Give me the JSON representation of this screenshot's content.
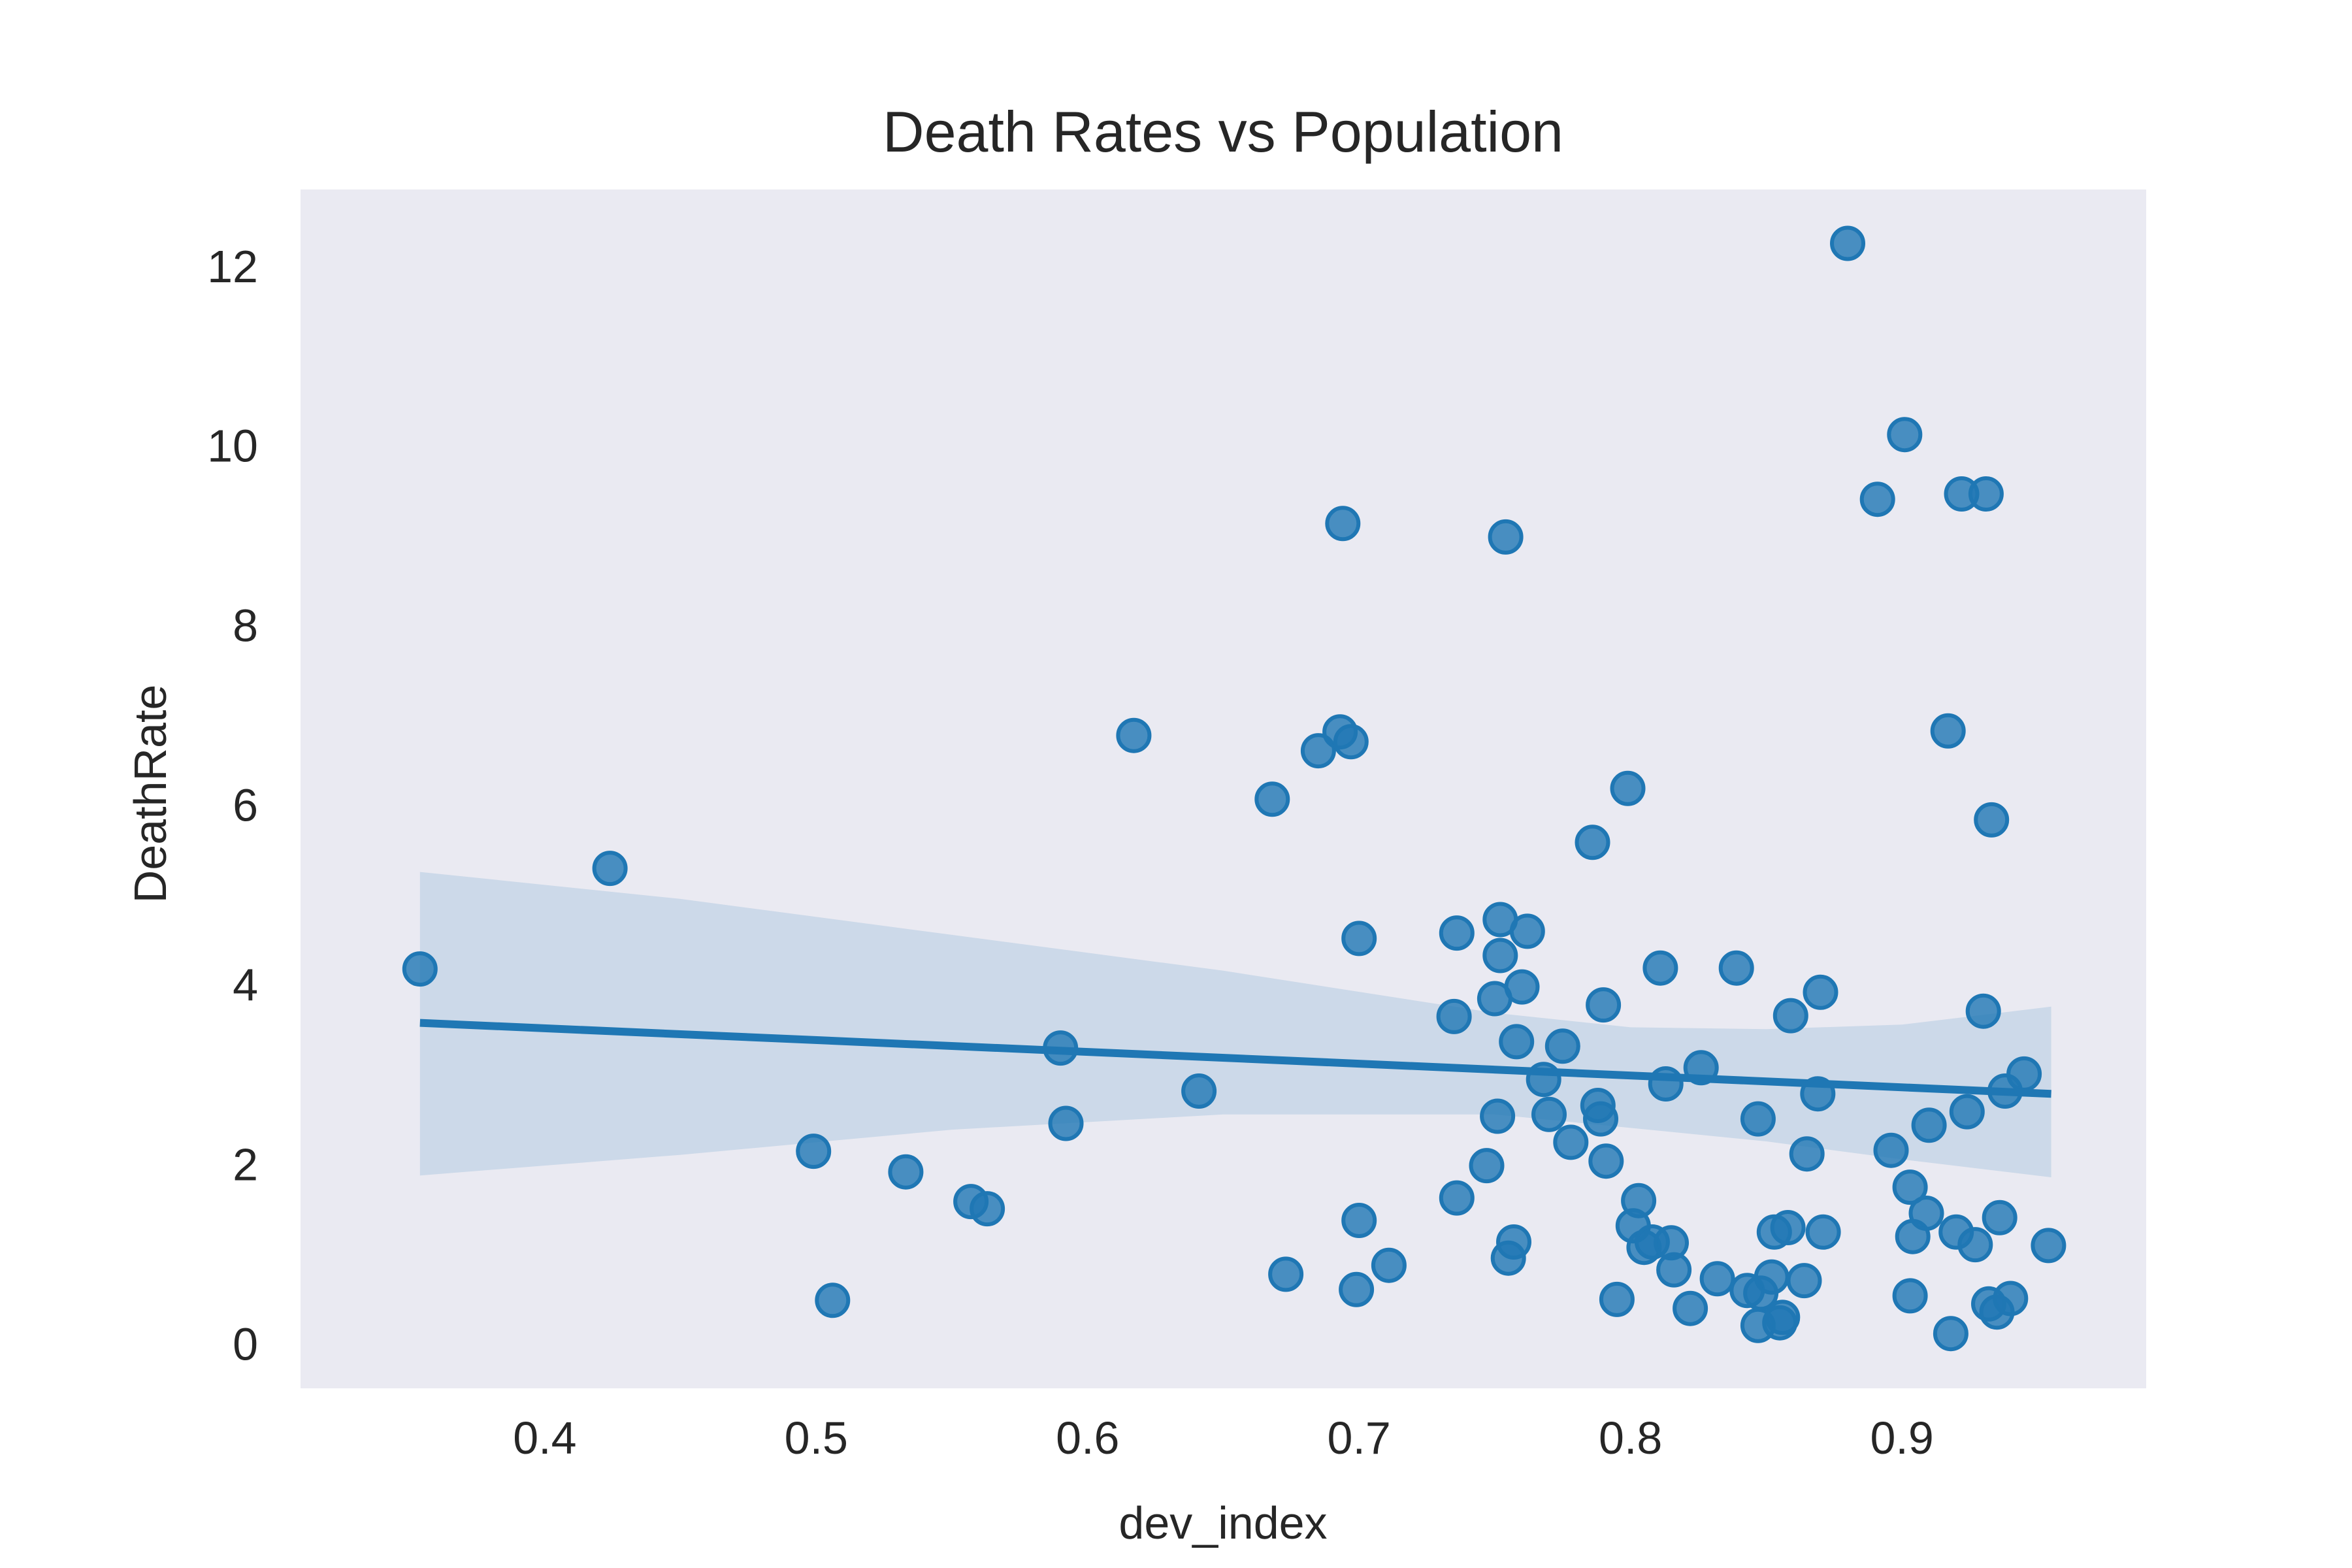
{
  "chart_data": {
    "type": "scatter",
    "title": "Death Rates vs Population",
    "xlabel": "dev_index",
    "ylabel": "DeathRate",
    "xlim": [
      0.31,
      0.99
    ],
    "ylim": [
      -0.5,
      12.85
    ],
    "xticks": [
      0.4,
      0.5,
      0.6,
      0.7,
      0.8,
      0.9
    ],
    "xtick_labels": [
      "0.4",
      "0.5",
      "0.6",
      "0.7",
      "0.8",
      "0.9"
    ],
    "yticks": [
      0,
      2,
      4,
      6,
      8,
      10,
      12
    ],
    "ytick_labels": [
      "0",
      "2",
      "4",
      "6",
      "8",
      "10",
      "12"
    ],
    "grid": false,
    "background": "#eaeaf2",
    "point_color": "#1f77b4",
    "regression": {
      "x": [
        0.354,
        0.955
      ],
      "y": [
        3.57,
        2.78
      ],
      "ci_upper": [
        [
          0.354,
          5.25
        ],
        [
          0.45,
          4.95
        ],
        [
          0.55,
          4.55
        ],
        [
          0.65,
          4.15
        ],
        [
          0.75,
          3.68
        ],
        [
          0.8,
          3.52
        ],
        [
          0.85,
          3.5
        ],
        [
          0.9,
          3.55
        ],
        [
          0.955,
          3.75
        ]
      ],
      "ci_lower": [
        [
          0.354,
          1.87
        ],
        [
          0.45,
          2.1
        ],
        [
          0.55,
          2.38
        ],
        [
          0.65,
          2.55
        ],
        [
          0.75,
          2.55
        ],
        [
          0.8,
          2.4
        ],
        [
          0.85,
          2.25
        ],
        [
          0.9,
          2.05
        ],
        [
          0.955,
          1.85
        ]
      ]
    },
    "points": [
      [
        0.354,
        4.17
      ],
      [
        0.424,
        5.29
      ],
      [
        0.499,
        2.14
      ],
      [
        0.506,
        0.48
      ],
      [
        0.533,
        1.91
      ],
      [
        0.557,
        1.58
      ],
      [
        0.563,
        1.5
      ],
      [
        0.59,
        3.29
      ],
      [
        0.592,
        2.45
      ],
      [
        0.617,
        6.77
      ],
      [
        0.641,
        2.81
      ],
      [
        0.668,
        6.06
      ],
      [
        0.673,
        0.77
      ],
      [
        0.685,
        6.6
      ],
      [
        0.693,
        6.81
      ],
      [
        0.694,
        9.13
      ],
      [
        0.697,
        6.7
      ],
      [
        0.699,
        0.6
      ],
      [
        0.7,
        4.51
      ],
      [
        0.7,
        1.37
      ],
      [
        0.711,
        0.87
      ],
      [
        0.735,
        3.64
      ],
      [
        0.736,
        1.62
      ],
      [
        0.736,
        4.57
      ],
      [
        0.747,
        1.98
      ],
      [
        0.75,
        3.84
      ],
      [
        0.751,
        2.53
      ],
      [
        0.752,
        4.32
      ],
      [
        0.752,
        4.72
      ],
      [
        0.754,
        8.98
      ],
      [
        0.755,
        0.95
      ],
      [
        0.757,
        1.13
      ],
      [
        0.758,
        3.36
      ],
      [
        0.76,
        3.97
      ],
      [
        0.762,
        4.59
      ],
      [
        0.768,
        2.94
      ],
      [
        0.77,
        2.55
      ],
      [
        0.775,
        3.31
      ],
      [
        0.778,
        2.24
      ],
      [
        0.786,
        5.58
      ],
      [
        0.788,
        2.65
      ],
      [
        0.789,
        2.5
      ],
      [
        0.79,
        3.77
      ],
      [
        0.791,
        2.03
      ],
      [
        0.795,
        0.49
      ],
      [
        0.799,
        6.18
      ],
      [
        0.801,
        1.31
      ],
      [
        0.803,
        1.59
      ],
      [
        0.805,
        1.07
      ],
      [
        0.808,
        1.13
      ],
      [
        0.811,
        4.18
      ],
      [
        0.813,
        2.89
      ],
      [
        0.815,
        1.12
      ],
      [
        0.816,
        0.82
      ],
      [
        0.822,
        0.39
      ],
      [
        0.826,
        3.07
      ],
      [
        0.832,
        0.72
      ],
      [
        0.839,
        4.18
      ],
      [
        0.843,
        0.59
      ],
      [
        0.847,
        2.5
      ],
      [
        0.847,
        0.2
      ],
      [
        0.848,
        0.56
      ],
      [
        0.852,
        0.74
      ],
      [
        0.853,
        1.24
      ],
      [
        0.855,
        0.23
      ],
      [
        0.856,
        0.29
      ],
      [
        0.858,
        1.29
      ],
      [
        0.859,
        3.65
      ],
      [
        0.864,
        0.7
      ],
      [
        0.865,
        2.11
      ],
      [
        0.869,
        2.78
      ],
      [
        0.87,
        3.91
      ],
      [
        0.871,
        1.24
      ],
      [
        0.88,
        12.25
      ],
      [
        0.891,
        9.4
      ],
      [
        0.896,
        2.15
      ],
      [
        0.901,
        10.12
      ],
      [
        0.903,
        1.74
      ],
      [
        0.903,
        0.53
      ],
      [
        0.904,
        1.19
      ],
      [
        0.909,
        1.45
      ],
      [
        0.91,
        2.43
      ],
      [
        0.917,
        6.82
      ],
      [
        0.918,
        0.11
      ],
      [
        0.92,
        1.24
      ],
      [
        0.922,
        9.46
      ],
      [
        0.924,
        2.58
      ],
      [
        0.927,
        1.1
      ],
      [
        0.93,
        3.7
      ],
      [
        0.931,
        9.46
      ],
      [
        0.932,
        0.44
      ],
      [
        0.933,
        5.83
      ],
      [
        0.935,
        0.35
      ],
      [
        0.936,
        1.4
      ],
      [
        0.938,
        2.81
      ],
      [
        0.94,
        0.5
      ],
      [
        0.945,
        3.0
      ],
      [
        0.954,
        1.09
      ]
    ]
  }
}
